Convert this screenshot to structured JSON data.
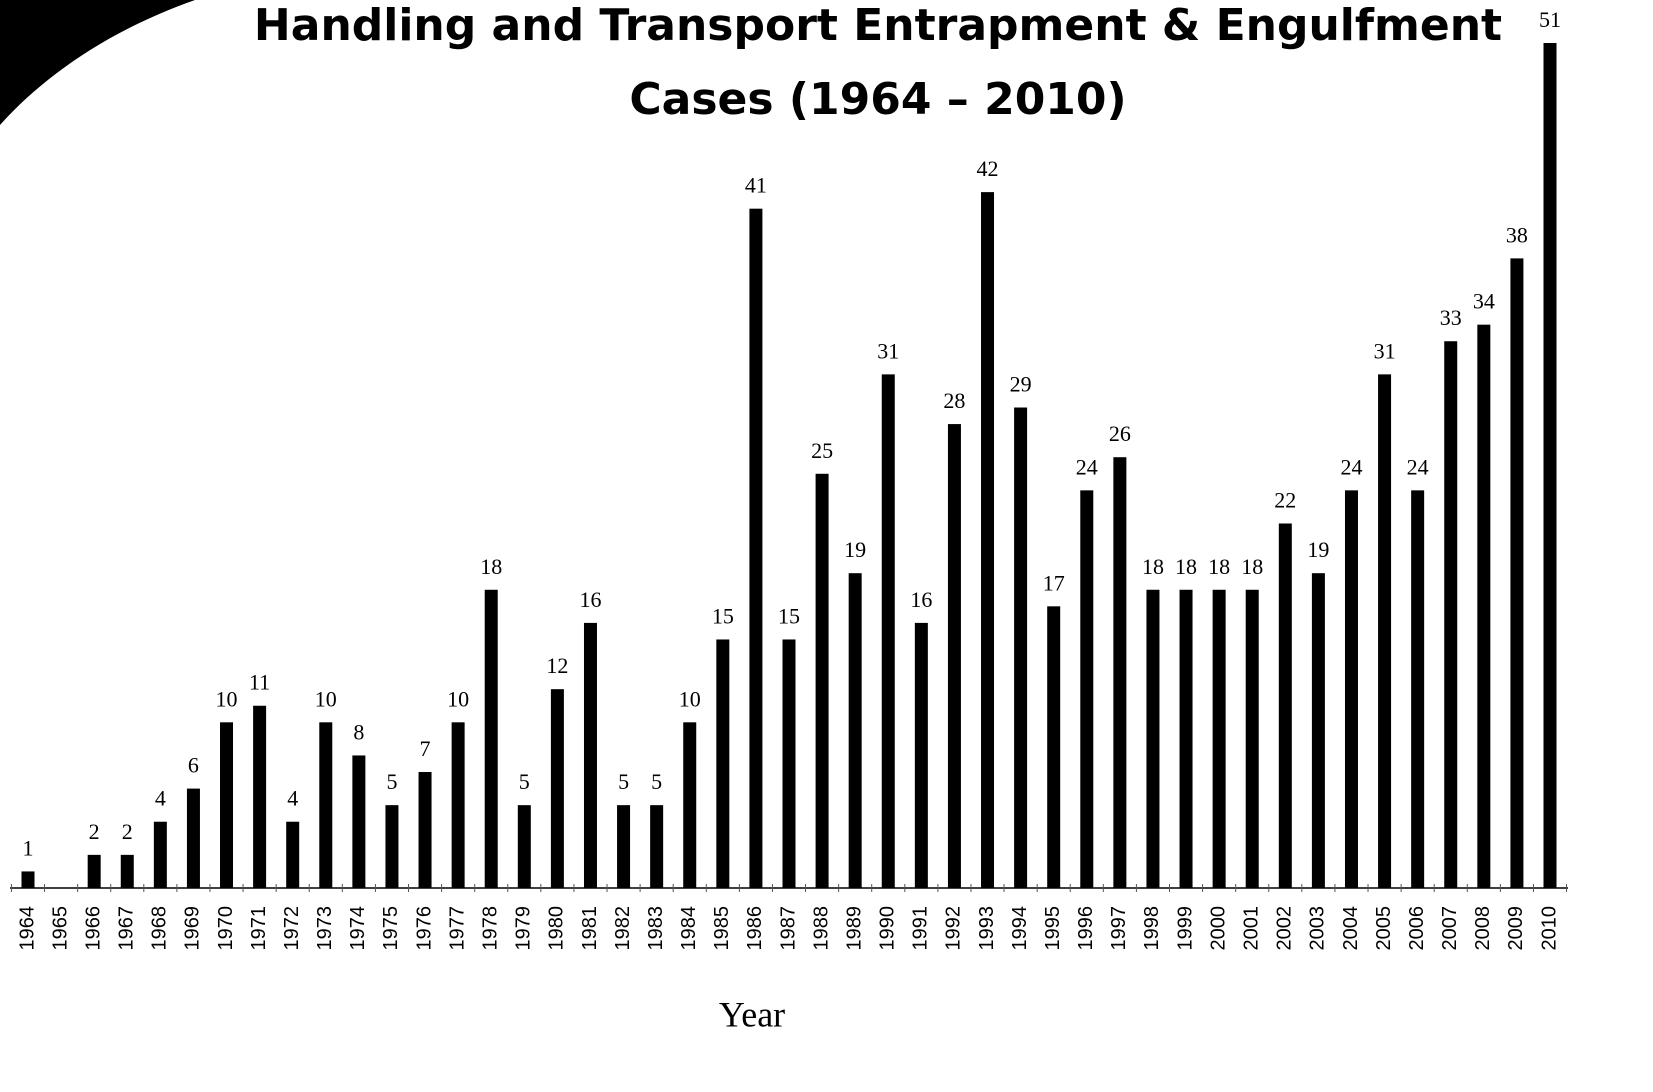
{
  "chart_data": {
    "type": "bar",
    "title": [
      "Handling and Transport Entrapment & Engulfment",
      "Cases  (1964 – 2010)"
    ],
    "x_label": "Year",
    "categories": [
      "1964",
      "1965",
      "1966",
      "1967",
      "1968",
      "1969",
      "1970",
      "1971",
      "1972",
      "1973",
      "1974",
      "1975",
      "1976",
      "1977",
      "1978",
      "1979",
      "1980",
      "1981",
      "1982",
      "1983",
      "1984",
      "1985",
      "1986",
      "1987",
      "1988",
      "1989",
      "1990",
      "1991",
      "1992",
      "1993",
      "1994",
      "1995",
      "1996",
      "1997",
      "1998",
      "1999",
      "2000",
      "2001",
      "2002",
      "2003",
      "2004",
      "2005",
      "2006",
      "2007",
      "2008",
      "2009",
      "2010"
    ],
    "values": [
      1,
      null,
      2,
      2,
      4,
      6,
      10,
      11,
      4,
      10,
      8,
      5,
      7,
      10,
      18,
      5,
      12,
      16,
      5,
      5,
      10,
      15,
      41,
      15,
      25,
      19,
      31,
      16,
      28,
      42,
      29,
      17,
      24,
      26,
      18,
      18,
      18,
      18,
      22,
      19,
      24,
      31,
      24,
      33,
      34,
      38,
      51
    ],
    "color": "#000000",
    "ylim": [
      0,
      51
    ]
  }
}
